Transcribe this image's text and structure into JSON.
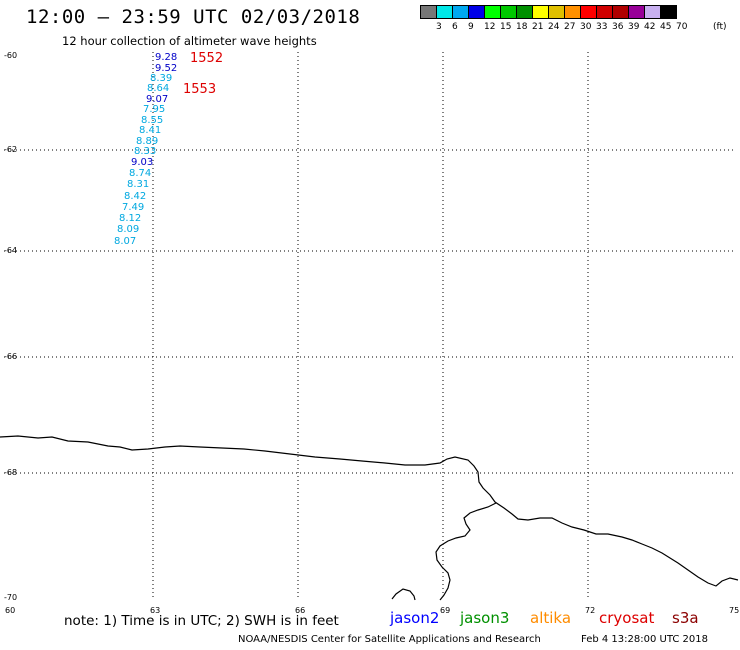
{
  "header": {
    "title": "12:00 – 23:59 UTC 02/03/2018",
    "subtitle": "12 hour collection of altimeter wave heights"
  },
  "colorbar": {
    "colors": [
      "#777777",
      "#00e8e8",
      "#00a8f0",
      "#0000e8",
      "#00ff00",
      "#00c800",
      "#009000",
      "#ffff00",
      "#e0c000",
      "#ff9000",
      "#ff0000",
      "#d00000",
      "#b00000",
      "#980098",
      "#c8b0f0",
      "#000000"
    ],
    "labels": [
      "3",
      "6",
      "9",
      "12",
      "15",
      "18",
      "21",
      "24",
      "27",
      "30",
      "33",
      "36",
      "39",
      "42",
      "45",
      "70",
      "(ft)"
    ]
  },
  "axes": {
    "lat_labels": [
      "-60",
      "-62",
      "-64",
      "-66",
      "-68",
      "-70"
    ],
    "lon_labels": [
      "60",
      "63",
      "66",
      "69",
      "72",
      "75"
    ]
  },
  "wave_heights": [
    {
      "value": "9.28",
      "color": "#0000c8"
    },
    {
      "value": "9.52",
      "color": "#0000c8"
    },
    {
      "value": "8.39",
      "color": "#00a8e0"
    },
    {
      "value": "8.64",
      "color": "#00a8e0"
    },
    {
      "value": "9.07",
      "color": "#0000c8"
    },
    {
      "value": "7.95",
      "color": "#00a8e0"
    },
    {
      "value": "8.55",
      "color": "#00a8e0"
    },
    {
      "value": "8.41",
      "color": "#00a8e0"
    },
    {
      "value": "8.89",
      "color": "#00a8e0"
    },
    {
      "value": "8.33",
      "color": "#00a8e0"
    },
    {
      "value": "9.03",
      "color": "#0000c8"
    },
    {
      "value": "8.74",
      "color": "#00a8e0"
    },
    {
      "value": "8.31",
      "color": "#00a8e0"
    },
    {
      "value": "8.42",
      "color": "#00a8e0"
    },
    {
      "value": "7.49",
      "color": "#00a8e0"
    },
    {
      "value": "8.12",
      "color": "#00a8e0"
    },
    {
      "value": "8.09",
      "color": "#00a8e0"
    },
    {
      "value": "8.07",
      "color": "#00a8e0"
    }
  ],
  "time_labels": [
    {
      "value": "1552",
      "color": "#dd0000"
    },
    {
      "value": "1553",
      "color": "#dd0000"
    }
  ],
  "footer": {
    "note": "note: 1) Time is in UTC; 2) SWH is in feet",
    "satellites": [
      {
        "name": "jason2",
        "color": "#0000ff"
      },
      {
        "name": "jason3",
        "color": "#009000"
      },
      {
        "name": "altika",
        "color": "#ff8c00"
      },
      {
        "name": "cryosat",
        "color": "#dd0000"
      },
      {
        "name": "s3a",
        "color": "#8b0000"
      }
    ],
    "credit": "NOAA/NESDIS Center for Satellite Applications and Research",
    "timestamp": "Feb  4 13:28:00 UTC 2018"
  }
}
